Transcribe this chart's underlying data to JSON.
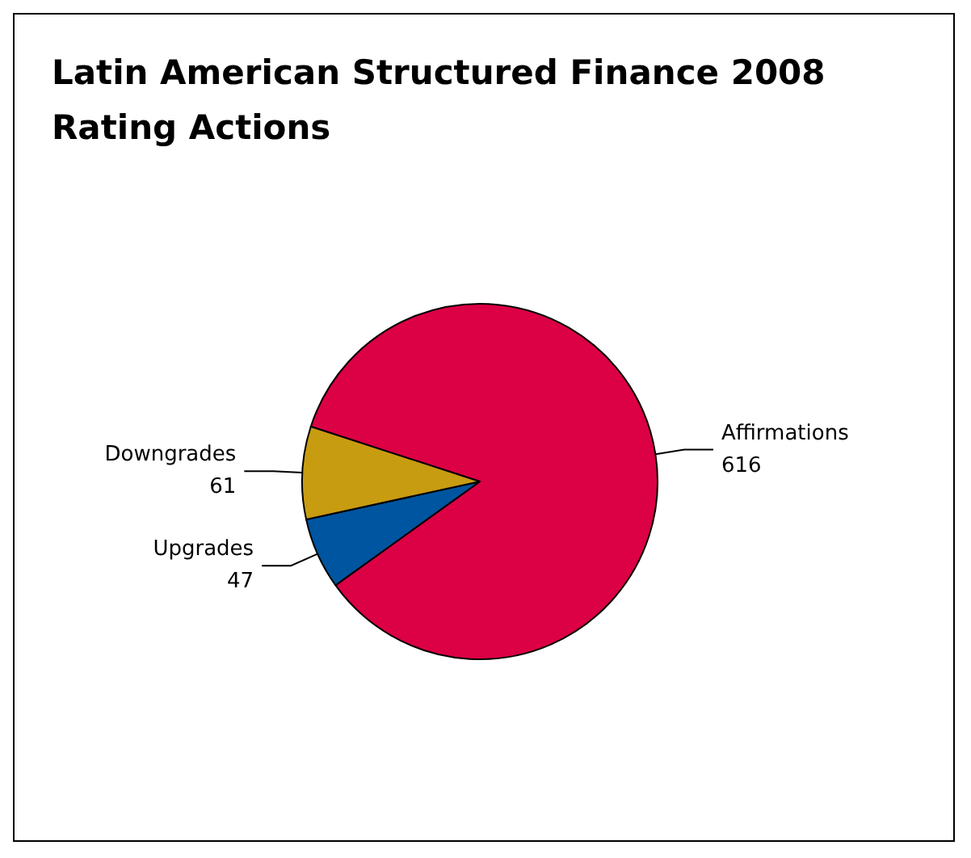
{
  "chart_data": {
    "type": "pie",
    "title": "Latin American Structured Finance 2008\nRating Actions",
    "categories": [
      "Affirmations",
      "Upgrades",
      "Downgrades"
    ],
    "values": [
      616,
      47,
      61
    ],
    "colors": [
      "#dc0044",
      "#0055a0",
      "#c89c10"
    ],
    "data_labels": true,
    "legend": false
  }
}
